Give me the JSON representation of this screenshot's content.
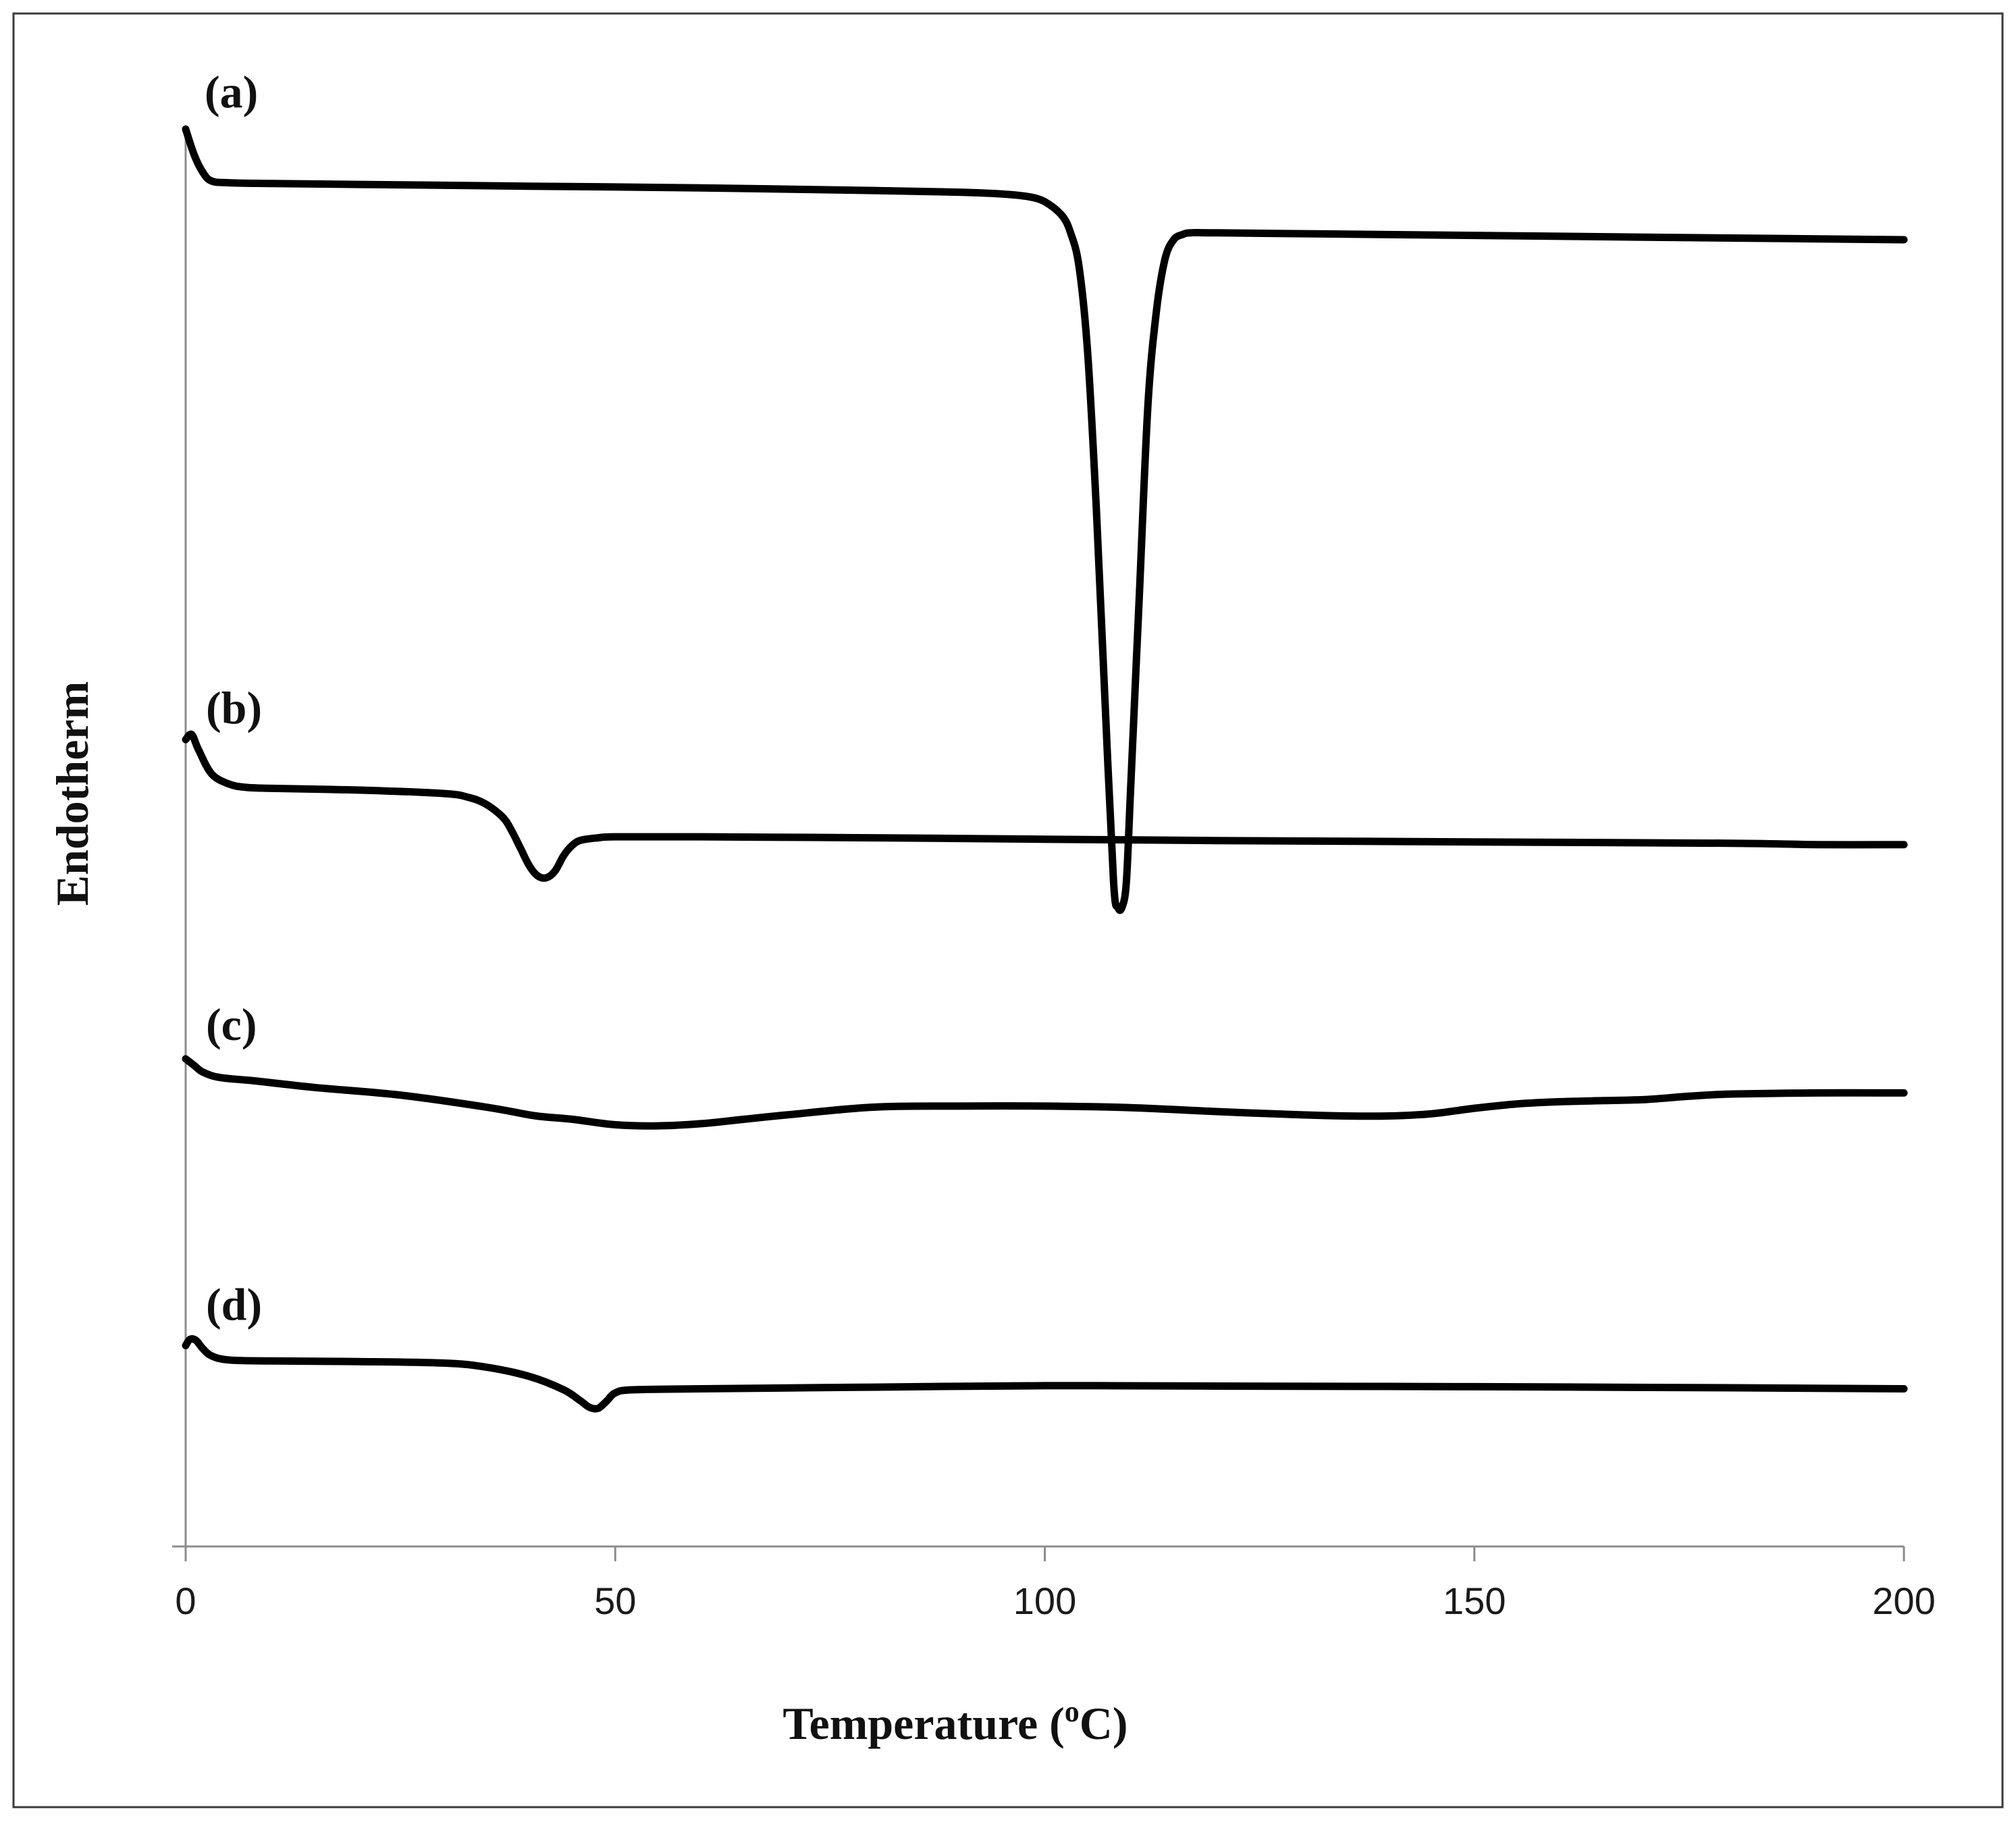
{
  "chart_data": {
    "type": "line",
    "xlabel": "Temperature (oC)",
    "xlabel_main": "Temperature (",
    "xlabel_sup": "o",
    "xlabel_end": "C)",
    "ylabel": "Endotherm",
    "xlim": [
      0,
      200
    ],
    "x_ticks": [
      0,
      50,
      100,
      150,
      200
    ],
    "x_tick_labels": [
      "0",
      "50",
      "100",
      "150",
      "200"
    ],
    "y_scale": "arbitrary (stacked traces, no y ticks)",
    "grid": false,
    "legend": "none (traces labelled directly)",
    "series": [
      {
        "label": "(a)",
        "x": [
          0,
          1,
          2,
          3,
          5,
          10,
          20,
          40,
          60,
          80,
          90,
          95,
          98,
          100,
          102,
          103,
          104,
          105,
          106,
          107,
          108,
          108.5,
          109,
          109.5,
          110,
          111,
          112,
          113,
          114,
          115,
          116,
          117,
          120,
          140,
          160,
          180,
          200
        ],
        "y": [
          9.6,
          9.3,
          9.1,
          9.0,
          8.98,
          8.97,
          8.96,
          8.94,
          8.92,
          8.89,
          8.87,
          8.85,
          8.82,
          8.76,
          8.6,
          8.4,
          8.0,
          7.0,
          5.2,
          3.0,
          0.9,
          0.6,
          0.6,
          0.9,
          2.0,
          4.2,
          6.4,
          7.5,
          8.1,
          8.32,
          8.38,
          8.4,
          8.4,
          8.38,
          8.36,
          8.34,
          8.32
        ]
      },
      {
        "label": "(b)",
        "x": [
          0,
          0.7,
          1.5,
          3,
          5,
          7,
          10,
          20,
          30,
          33,
          35,
          37,
          38,
          39,
          40,
          41,
          42,
          43,
          44,
          45,
          46,
          48,
          50,
          60,
          80,
          100,
          120,
          150,
          180,
          190,
          200
        ],
        "y": [
          9.6,
          9.75,
          9.3,
          8.6,
          8.3,
          8.2,
          8.17,
          8.12,
          8.02,
          7.9,
          7.7,
          7.3,
          6.9,
          6.4,
          5.9,
          5.6,
          5.55,
          5.75,
          6.2,
          6.5,
          6.65,
          6.72,
          6.75,
          6.75,
          6.72,
          6.68,
          6.64,
          6.6,
          6.56,
          6.52,
          6.52
        ]
      },
      {
        "label": "(c)",
        "x": [
          0,
          1,
          2,
          4,
          8,
          15,
          25,
          35,
          40,
          42,
          45,
          50,
          55,
          60,
          65,
          70,
          80,
          90,
          100,
          110,
          120,
          130,
          135,
          140,
          145,
          150,
          155,
          160,
          165,
          170,
          175,
          180,
          190,
          200
        ],
        "y": [
          9.6,
          9.3,
          9.0,
          8.75,
          8.6,
          8.3,
          7.95,
          7.4,
          7.05,
          6.95,
          6.85,
          6.6,
          6.55,
          6.65,
          6.85,
          7.05,
          7.4,
          7.45,
          7.45,
          7.38,
          7.2,
          7.05,
          7.0,
          7.0,
          7.1,
          7.35,
          7.55,
          7.65,
          7.7,
          7.75,
          7.9,
          8.0,
          8.05,
          8.05
        ]
      },
      {
        "label": "(d)",
        "x": [
          0,
          0.5,
          1.2,
          2,
          3,
          5,
          10,
          20,
          30,
          35,
          40,
          44,
          46,
          47,
          48,
          49,
          50,
          52,
          60,
          80,
          100,
          120,
          150,
          180,
          200
        ],
        "y": [
          9.1,
          9.4,
          9.35,
          8.95,
          8.6,
          8.4,
          8.35,
          8.32,
          8.25,
          8.05,
          7.6,
          6.95,
          6.4,
          6.1,
          6.05,
          6.4,
          6.8,
          6.95,
          7.0,
          7.08,
          7.15,
          7.13,
          7.1,
          7.05,
          7.0
        ]
      }
    ]
  }
}
